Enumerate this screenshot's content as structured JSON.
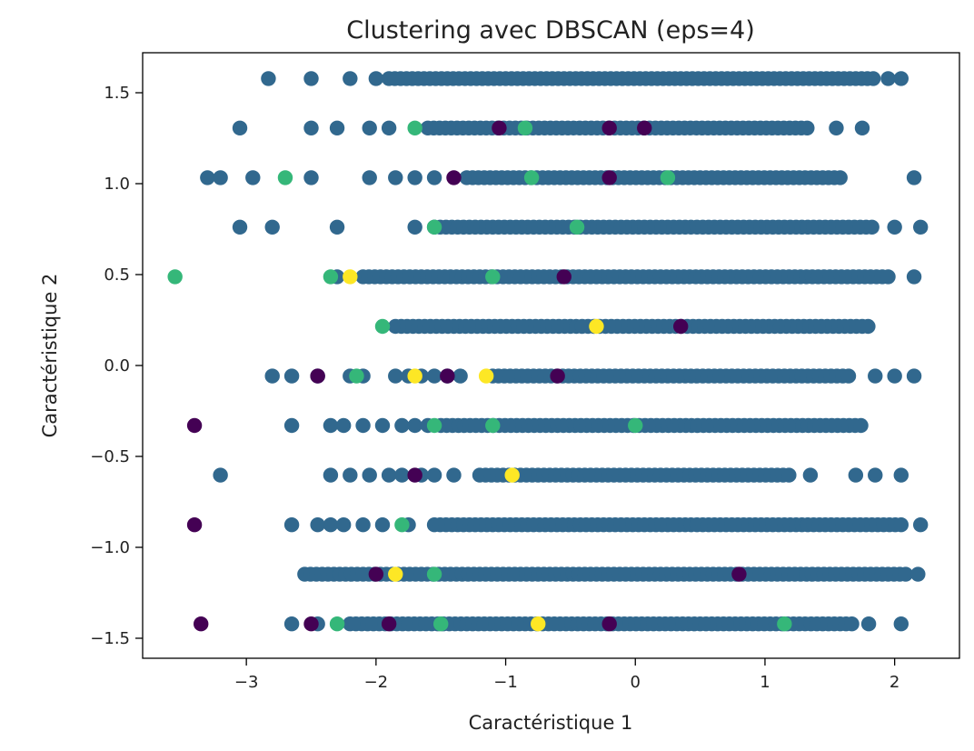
{
  "chart_data": {
    "type": "scatter",
    "title": "Clustering avec DBSCAN (eps=4)",
    "xlabel": "Caractéristique 1",
    "ylabel": "Caractéristique 2",
    "xlim": [
      -3.8,
      2.5
    ],
    "ylim": [
      -1.61,
      1.72
    ],
    "xticks": [
      -3,
      -2,
      -1,
      0,
      1,
      2
    ],
    "xtick_labels": [
      "−3",
      "−2",
      "−1",
      "0",
      "1",
      "2"
    ],
    "yticks": [
      -1.5,
      -1.0,
      -0.5,
      0.0,
      0.5,
      1.0,
      1.5
    ],
    "ytick_labels": [
      "−1.5",
      "−1.0",
      "−0.5",
      "0.0",
      "0.5",
      "1.0",
      "1.5"
    ],
    "grid": false,
    "legend": "none",
    "colors": {
      "noise": "#440154",
      "cluster_0": "#31688e",
      "cluster_1": "#35b779",
      "cluster_2": "#fde725"
    },
    "rows": [
      {
        "y": 1.578,
        "segments": [
          [
            -1.9,
            1.85
          ]
        ],
        "extra_x": [
          -2.83,
          -2.5,
          -2.2,
          -2.0,
          1.95,
          2.05
        ]
      },
      {
        "y": 1.306,
        "segments": [
          [
            -1.6,
            1.35
          ]
        ],
        "extra_x": [
          -3.05,
          -2.5,
          -2.3,
          -2.05,
          -1.9,
          1.55,
          1.75
        ]
      },
      {
        "y": 1.033,
        "segments": [
          [
            -1.3,
            1.6
          ]
        ],
        "extra_x": [
          -3.3,
          -3.2,
          -2.95,
          -2.5,
          -2.05,
          -1.85,
          -1.7,
          -1.55,
          2.15
        ]
      },
      {
        "y": 0.761,
        "segments": [
          [
            -1.55,
            1.85
          ]
        ],
        "extra_x": [
          -3.05,
          -2.8,
          -2.3,
          -1.7,
          2.0,
          2.2
        ]
      },
      {
        "y": 0.488,
        "segments": [
          [
            -2.1,
            1.95
          ]
        ],
        "extra_x": [
          -2.3,
          2.15
        ]
      },
      {
        "y": 0.215,
        "segments": [
          [
            -1.85,
            1.8
          ]
        ],
        "extra_x": []
      },
      {
        "y": -0.058,
        "segments": [
          [
            -1.1,
            1.65
          ]
        ],
        "extra_x": [
          -2.8,
          -2.65,
          -2.45,
          -2.2,
          -2.1,
          -1.85,
          -1.75,
          -1.65,
          -1.55,
          -1.45,
          -1.35,
          1.85,
          2.0,
          2.15
        ]
      },
      {
        "y": -0.33,
        "segments": [
          [
            -1.5,
            1.75
          ]
        ],
        "extra_x": [
          -2.65,
          -2.35,
          -2.25,
          -2.1,
          -1.95,
          -1.8,
          -1.7,
          -1.6
        ]
      },
      {
        "y": -0.603,
        "segments": [
          [
            -1.2,
            1.2
          ]
        ],
        "extra_x": [
          -3.2,
          -2.35,
          -2.2,
          -2.05,
          -1.9,
          -1.8,
          -1.65,
          -1.55,
          -1.4,
          1.35,
          1.7,
          1.85,
          2.05
        ]
      },
      {
        "y": -0.876,
        "segments": [
          [
            -1.55,
            2.05
          ]
        ],
        "extra_x": [
          -2.65,
          -2.45,
          -2.35,
          -2.25,
          -2.1,
          -1.95,
          -1.75,
          2.2
        ]
      },
      {
        "y": -1.148,
        "segments": [
          [
            -2.55,
            2.1
          ]
        ],
        "extra_x": [
          2.18
        ]
      },
      {
        "y": -1.421,
        "segments": [
          [
            -2.2,
            1.7
          ]
        ],
        "extra_x": [
          -2.65,
          -2.45,
          1.8,
          2.05
        ]
      }
    ],
    "accent_points": [
      {
        "x": -1.7,
        "y": 1.306,
        "cluster": 1
      },
      {
        "x": -0.85,
        "y": 1.306,
        "cluster": 1
      },
      {
        "x": -1.05,
        "y": 1.306,
        "cluster": -1
      },
      {
        "x": -0.2,
        "y": 1.306,
        "cluster": -1
      },
      {
        "x": 0.07,
        "y": 1.306,
        "cluster": -1
      },
      {
        "x": -2.7,
        "y": 1.033,
        "cluster": 1
      },
      {
        "x": -0.8,
        "y": 1.033,
        "cluster": 1
      },
      {
        "x": 0.25,
        "y": 1.033,
        "cluster": 1
      },
      {
        "x": -0.2,
        "y": 1.033,
        "cluster": -1
      },
      {
        "x": -1.4,
        "y": 1.033,
        "cluster": -1
      },
      {
        "x": -1.55,
        "y": 0.761,
        "cluster": 1
      },
      {
        "x": -0.45,
        "y": 0.761,
        "cluster": 1
      },
      {
        "x": -3.55,
        "y": 0.488,
        "cluster": 1
      },
      {
        "x": -2.35,
        "y": 0.488,
        "cluster": 1
      },
      {
        "x": -2.2,
        "y": 0.488,
        "cluster": 2
      },
      {
        "x": -1.1,
        "y": 0.488,
        "cluster": 1
      },
      {
        "x": -0.55,
        "y": 0.488,
        "cluster": -1
      },
      {
        "x": -1.95,
        "y": 0.215,
        "cluster": 1
      },
      {
        "x": -0.3,
        "y": 0.215,
        "cluster": 2
      },
      {
        "x": 0.35,
        "y": 0.215,
        "cluster": -1
      },
      {
        "x": -2.45,
        "y": -0.058,
        "cluster": -1
      },
      {
        "x": -2.15,
        "y": -0.058,
        "cluster": 1
      },
      {
        "x": -1.7,
        "y": -0.058,
        "cluster": 2
      },
      {
        "x": -1.45,
        "y": -0.058,
        "cluster": -1
      },
      {
        "x": -1.15,
        "y": -0.058,
        "cluster": 2
      },
      {
        "x": -0.6,
        "y": -0.058,
        "cluster": -1
      },
      {
        "x": -3.4,
        "y": -0.33,
        "cluster": -1
      },
      {
        "x": -1.55,
        "y": -0.33,
        "cluster": 1
      },
      {
        "x": -1.1,
        "y": -0.33,
        "cluster": 1
      },
      {
        "x": 0.0,
        "y": -0.33,
        "cluster": 1
      },
      {
        "x": -1.7,
        "y": -0.603,
        "cluster": -1
      },
      {
        "x": -0.95,
        "y": -0.603,
        "cluster": 2
      },
      {
        "x": -3.4,
        "y": -0.876,
        "cluster": -1
      },
      {
        "x": -1.8,
        "y": -0.876,
        "cluster": 1
      },
      {
        "x": -2.0,
        "y": -1.148,
        "cluster": -1
      },
      {
        "x": -1.85,
        "y": -1.148,
        "cluster": 2
      },
      {
        "x": -1.55,
        "y": -1.148,
        "cluster": 1
      },
      {
        "x": 0.8,
        "y": -1.148,
        "cluster": -1
      },
      {
        "x": -3.35,
        "y": -1.421,
        "cluster": -1
      },
      {
        "x": -2.5,
        "y": -1.421,
        "cluster": -1
      },
      {
        "x": -2.3,
        "y": -1.421,
        "cluster": 1
      },
      {
        "x": -1.9,
        "y": -1.421,
        "cluster": -1
      },
      {
        "x": -1.5,
        "y": -1.421,
        "cluster": 1
      },
      {
        "x": -0.75,
        "y": -1.421,
        "cluster": 2
      },
      {
        "x": -0.2,
        "y": -1.421,
        "cluster": -1
      },
      {
        "x": 1.15,
        "y": -1.421,
        "cluster": 1
      }
    ]
  }
}
